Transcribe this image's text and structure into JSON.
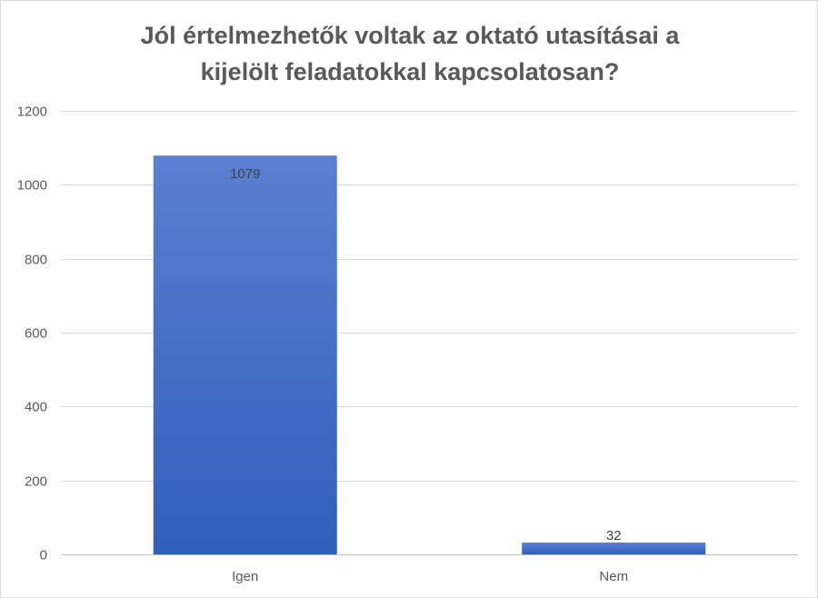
{
  "chart_data": {
    "type": "bar",
    "title_line1": "Jól értelmezhetők voltak az oktató utasításai a",
    "title_line2": "kijelölt feladatokkal kapcsolatosan?",
    "categories": [
      "Igen",
      "Nem"
    ],
    "values": [
      1079,
      32
    ],
    "data_labels": [
      "1079",
      "32"
    ],
    "xlabel": "",
    "ylabel": "",
    "ylim": [
      0,
      1200
    ],
    "yticks": [
      0,
      200,
      400,
      600,
      800,
      1000,
      1200
    ],
    "grid": true,
    "legend": "none",
    "bar_color_top": "#5b7fd0",
    "bar_color_bottom": "#2f5fbd"
  }
}
